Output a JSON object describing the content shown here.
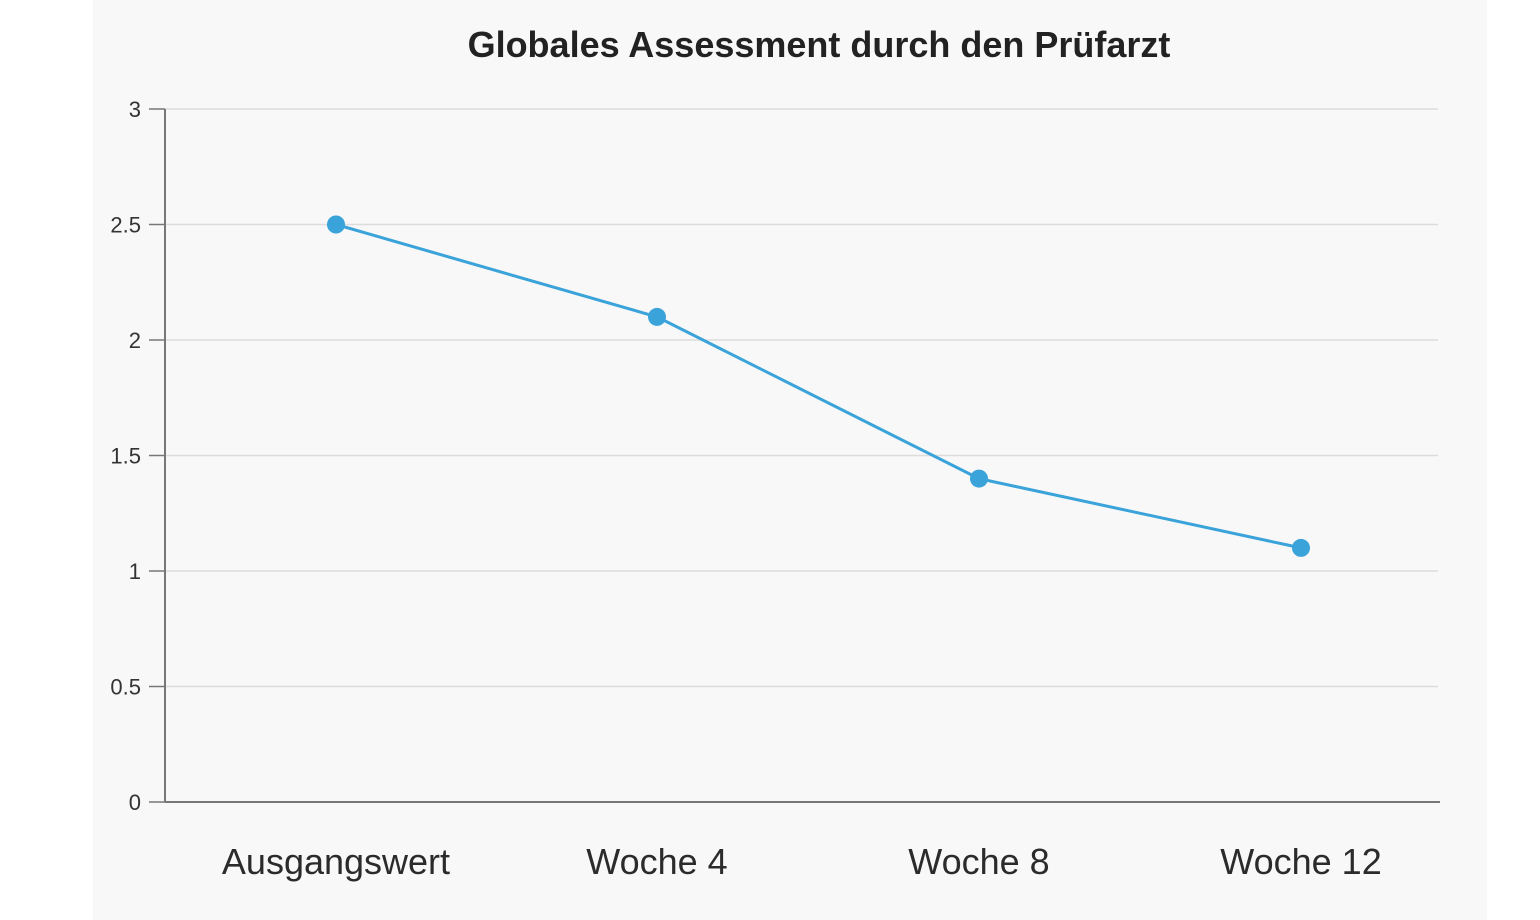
{
  "chart_data": {
    "type": "line",
    "title": "Globales Assessment durch den Prüfarzt",
    "xlabel": "",
    "ylabel": "",
    "categories": [
      "Ausgangswert",
      "Woche 4",
      "Woche 8",
      "Woche 12"
    ],
    "series": [
      {
        "values": [
          2.5,
          2.1,
          1.4,
          1.1
        ]
      }
    ],
    "ylim": [
      0,
      3
    ],
    "yticks": [
      "0",
      "0.5",
      "1",
      "1.5",
      "2",
      "2.5",
      "3"
    ],
    "grid": true,
    "legend": "none",
    "colors": {
      "series": "#3aa3d9",
      "grid": "#dcdcdc",
      "axis": "#777777"
    }
  }
}
